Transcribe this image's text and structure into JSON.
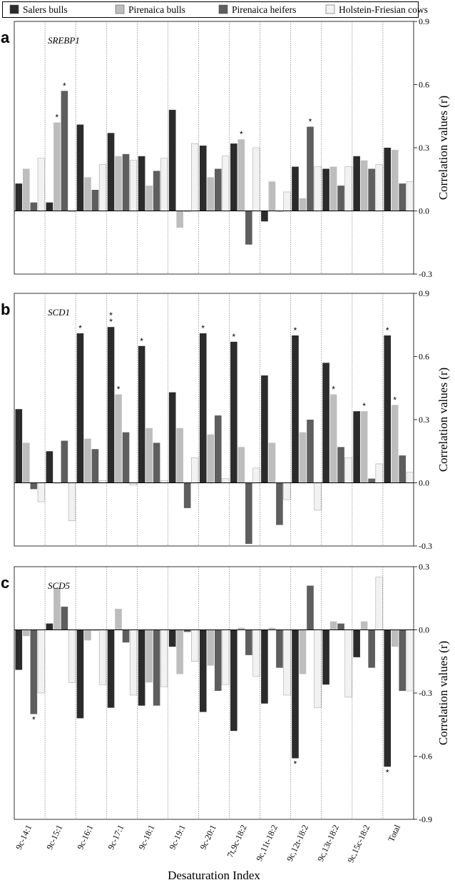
{
  "legend": [
    {
      "name": "Salers bulls",
      "color": "#2b2b2b"
    },
    {
      "name": "Pirenaica bulls",
      "color": "#bdbdbd"
    },
    {
      "name": "Pirenaica heifers",
      "color": "#5e5e5e"
    },
    {
      "name": "Holstein-Friesian cows",
      "color": "#f2f2f2"
    }
  ],
  "xlabel": "Desaturation Index",
  "ylabel": "Correlation values (r)",
  "chart_data": [
    {
      "type": "bar",
      "panel": "a",
      "gene": "SREBP1",
      "ylim": [
        -0.3,
        0.9
      ],
      "yticks": [
        "-0.3",
        "0.0",
        "0.3",
        "0.6",
        "0.9"
      ],
      "categories": [
        "9c-14:1",
        "9c-15:1",
        "9c-16:1",
        "9c-17:1",
        "9c-18:1",
        "9c-19:1",
        "9c-20:1",
        "7t,9c-18:2",
        "9c,11t-18:2",
        "9c,12t-18:2",
        "9c,13t-18:2",
        "9c,15c-18:2",
        "Total"
      ],
      "series": [
        {
          "name": "Salers bulls",
          "values": [
            0.13,
            0.04,
            0.41,
            0.37,
            0.26,
            0.48,
            0.31,
            0.32,
            -0.05,
            0.21,
            0.2,
            0.26,
            0.3
          ]
        },
        {
          "name": "Pirenaica bulls",
          "values": [
            0.2,
            0.42,
            0.16,
            0.26,
            0.12,
            -0.08,
            0.16,
            0.34,
            0.14,
            0.06,
            0.21,
            0.24,
            0.29
          ]
        },
        {
          "name": "Pirenaica heifers",
          "values": [
            0.04,
            0.57,
            0.1,
            0.27,
            0.19,
            0.0,
            0.2,
            -0.16,
            0.0,
            0.4,
            0.12,
            0.2,
            0.13
          ]
        },
        {
          "name": "Holstein-Friesian cows",
          "values": [
            0.25,
            0.0,
            0.22,
            0.24,
            0.25,
            0.32,
            0.26,
            0.3,
            0.09,
            0.21,
            0.21,
            0.22,
            0.14
          ]
        }
      ],
      "stars": [
        {
          "category": 1,
          "series": 1,
          "text": "*"
        },
        {
          "category": 1,
          "series": 2,
          "text": "*"
        },
        {
          "category": 7,
          "series": 1,
          "text": "*"
        },
        {
          "category": 9,
          "series": 2,
          "text": "*"
        }
      ]
    },
    {
      "type": "bar",
      "panel": "b",
      "gene": "SCD1",
      "ylim": [
        -0.3,
        0.9
      ],
      "yticks": [
        "-0.3",
        "0.0",
        "0.3",
        "0.6",
        "0.9"
      ],
      "categories": [
        "9c-14:1",
        "9c-15:1",
        "9c-16:1",
        "9c-17:1",
        "9c-18:1",
        "9c-19:1",
        "9c-20:1",
        "7t,9c-18:2",
        "9c,11t-18:2",
        "9c,12t-18:2",
        "9c,13t-18:2",
        "9c,15c-18:2",
        "Total"
      ],
      "series": [
        {
          "name": "Salers bulls",
          "values": [
            0.35,
            0.15,
            0.71,
            0.74,
            0.65,
            0.43,
            0.71,
            0.67,
            0.51,
            0.7,
            0.57,
            0.34,
            0.7
          ]
        },
        {
          "name": "Pirenaica bulls",
          "values": [
            0.19,
            0.0,
            0.21,
            0.42,
            0.26,
            0.26,
            0.23,
            0.17,
            0.19,
            0.24,
            0.42,
            0.34,
            0.37
          ]
        },
        {
          "name": "Pirenaica heifers",
          "values": [
            -0.03,
            0.2,
            0.16,
            0.24,
            0.19,
            -0.12,
            0.32,
            -0.29,
            -0.2,
            0.3,
            0.17,
            0.02,
            0.13
          ]
        },
        {
          "name": "Holstein-Friesian cows",
          "values": [
            -0.09,
            -0.18,
            0.01,
            -0.01,
            0.01,
            0.12,
            0.02,
            0.07,
            -0.08,
            -0.13,
            0.12,
            0.09,
            0.05
          ]
        }
      ],
      "stars": [
        {
          "category": 2,
          "series": 0,
          "text": "*"
        },
        {
          "category": 3,
          "series": 0,
          "text": "**"
        },
        {
          "category": 3,
          "series": 1,
          "text": "*"
        },
        {
          "category": 4,
          "series": 0,
          "text": "*"
        },
        {
          "category": 6,
          "series": 0,
          "text": "*"
        },
        {
          "category": 7,
          "series": 0,
          "text": "*"
        },
        {
          "category": 9,
          "series": 0,
          "text": "*"
        },
        {
          "category": 10,
          "series": 1,
          "text": "*"
        },
        {
          "category": 11,
          "series": 1,
          "text": "*"
        },
        {
          "category": 12,
          "series": 0,
          "text": "*"
        },
        {
          "category": 12,
          "series": 1,
          "text": "*"
        }
      ]
    },
    {
      "type": "bar",
      "panel": "c",
      "gene": "SCD5",
      "ylim": [
        -0.9,
        0.3
      ],
      "yticks": [
        "-0.9",
        "-0.6",
        "-0.3",
        "0.0",
        "0.3"
      ],
      "categories": [
        "9c-14:1",
        "9c-15:1",
        "9c-16:1",
        "9c-17:1",
        "9c-18:1",
        "9c-19:1",
        "9c-20:1",
        "7t,9c-18:2",
        "9c,11t-18:2",
        "9c,12t-18:2",
        "9c,13t-18:2",
        "9c,15c-18:2",
        "Total"
      ],
      "series": [
        {
          "name": "Salers bulls",
          "values": [
            -0.19,
            0.03,
            -0.42,
            -0.37,
            -0.36,
            -0.08,
            -0.39,
            -0.48,
            -0.35,
            -0.61,
            -0.26,
            -0.13,
            -0.65
          ]
        },
        {
          "name": "Pirenaica bulls",
          "values": [
            -0.03,
            0.2,
            -0.05,
            0.1,
            -0.25,
            -0.21,
            -0.17,
            0.01,
            0.01,
            -0.21,
            0.04,
            0.04,
            -0.08
          ]
        },
        {
          "name": "Pirenaica heifers",
          "values": [
            -0.4,
            0.11,
            0.0,
            -0.06,
            -0.36,
            -0.01,
            -0.29,
            -0.12,
            -0.18,
            0.21,
            0.03,
            -0.18,
            -0.29
          ]
        },
        {
          "name": "Holstein-Friesian cows",
          "values": [
            -0.3,
            -0.25,
            -0.26,
            -0.31,
            -0.27,
            -0.15,
            -0.26,
            -0.22,
            -0.31,
            -0.37,
            -0.32,
            0.25,
            -0.29
          ]
        }
      ],
      "stars": [
        {
          "category": 0,
          "series": 2,
          "text": "*"
        },
        {
          "category": 9,
          "series": 0,
          "text": "*"
        },
        {
          "category": 12,
          "series": 0,
          "text": "*"
        }
      ]
    }
  ]
}
